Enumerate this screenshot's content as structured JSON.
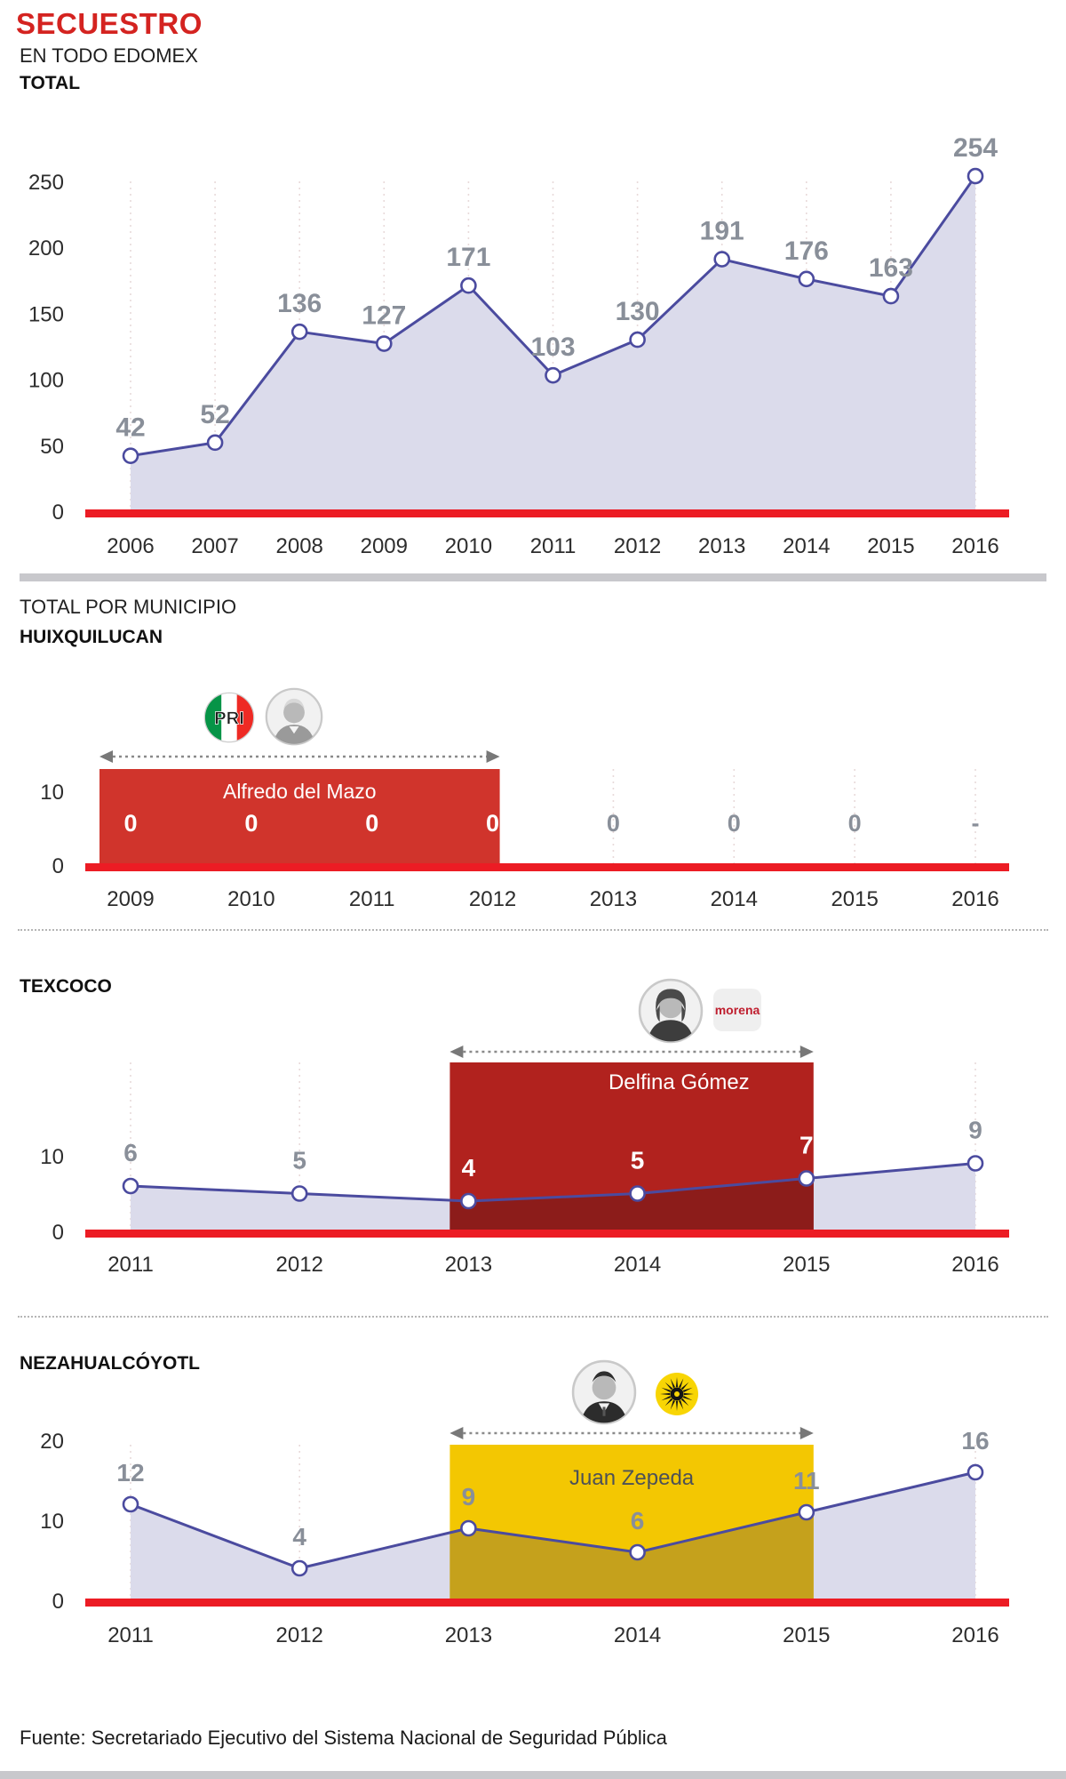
{
  "page": {
    "title": "SECUESTRO",
    "subtitle": "EN TODO EDOMEX",
    "municipio_section_label": "TOTAL POR MUNICIPIO",
    "source": "Fuente: Secretariado Ejecutivo del Sistema Nacional de Seguridad Pública"
  },
  "colors": {
    "accent_red": "#d42320",
    "baseline_red": "#ec1c24",
    "line_blue": "#4b4b9f",
    "area_lavender": "#dbdbeb",
    "gridline_pink": "#e8dada",
    "value_gray": "#898f99",
    "tick_dark": "#2d2d2d",
    "divider_gray": "#c8c8cc",
    "huixquilucan_block_red": "#d0342c",
    "texcoco_block_red": "#b1221e",
    "texcoco_under_red": "#8c1c1a",
    "neza_block_yellow": "#f3c702",
    "neza_under_gold": "#c5a11c",
    "pri_green": "#069447",
    "pri_red": "#ee2a24",
    "morena_red": "#bf1e2e",
    "prd_yellow": "#f8d504",
    "name_dark": "#4d5157",
    "arrow_gray": "#787878"
  },
  "chart_data": [
    {
      "type": "area",
      "title": "TOTAL",
      "categories": [
        2006,
        2007,
        2008,
        2009,
        2010,
        2011,
        2012,
        2013,
        2014,
        2015,
        2016
      ],
      "values": [
        42,
        52,
        136,
        127,
        171,
        103,
        130,
        191,
        176,
        163,
        254
      ],
      "yticks": [
        0,
        50,
        100,
        150,
        200,
        250
      ],
      "ylim": [
        0,
        260
      ],
      "xlabel": "",
      "ylabel": "",
      "grid": "vertical-dashed",
      "legend": "none"
    },
    {
      "type": "area",
      "title": "HUIXQUILUCAN",
      "categories": [
        2009,
        2010,
        2011,
        2012,
        2013,
        2014,
        2015,
        2016
      ],
      "values": [
        0,
        0,
        0,
        0,
        0,
        0,
        0,
        null
      ],
      "value_labels": [
        "0",
        "0",
        "0",
        "0",
        "0",
        "0",
        "0",
        "-"
      ],
      "yticks": [
        0,
        10
      ],
      "ylim": [
        0,
        13
      ],
      "show_line": false,
      "grid": "vertical-dashed",
      "legend": "none",
      "highlight": {
        "label": "Alfredo del Mazo",
        "party": "PRI",
        "from": 2009,
        "to": 2012
      }
    },
    {
      "type": "area",
      "title": "TEXCOCO",
      "categories": [
        2011,
        2012,
        2013,
        2014,
        2015,
        2016
      ],
      "values": [
        6,
        5,
        4,
        5,
        7,
        9
      ],
      "yticks": [
        0,
        10
      ],
      "ylim": [
        0,
        21
      ],
      "grid": "vertical-dashed",
      "legend": "none",
      "highlight": {
        "label": "Delfina Gómez",
        "party": "morena",
        "from": 2013,
        "to": 2015,
        "white_label_years": [
          2013,
          2014,
          2015
        ]
      }
    },
    {
      "type": "area",
      "title": "NEZAHUALCÓYOTL",
      "categories": [
        2011,
        2012,
        2013,
        2014,
        2015,
        2016
      ],
      "values": [
        12,
        4,
        9,
        6,
        11,
        16
      ],
      "yticks": [
        0,
        10,
        20
      ],
      "ylim": [
        0,
        19.5
      ],
      "grid": "vertical-dashed",
      "legend": "none",
      "highlight": {
        "label": "Juan Zepeda",
        "party": "PRD",
        "from": 2013,
        "to": 2015,
        "white_label_years": []
      }
    }
  ]
}
